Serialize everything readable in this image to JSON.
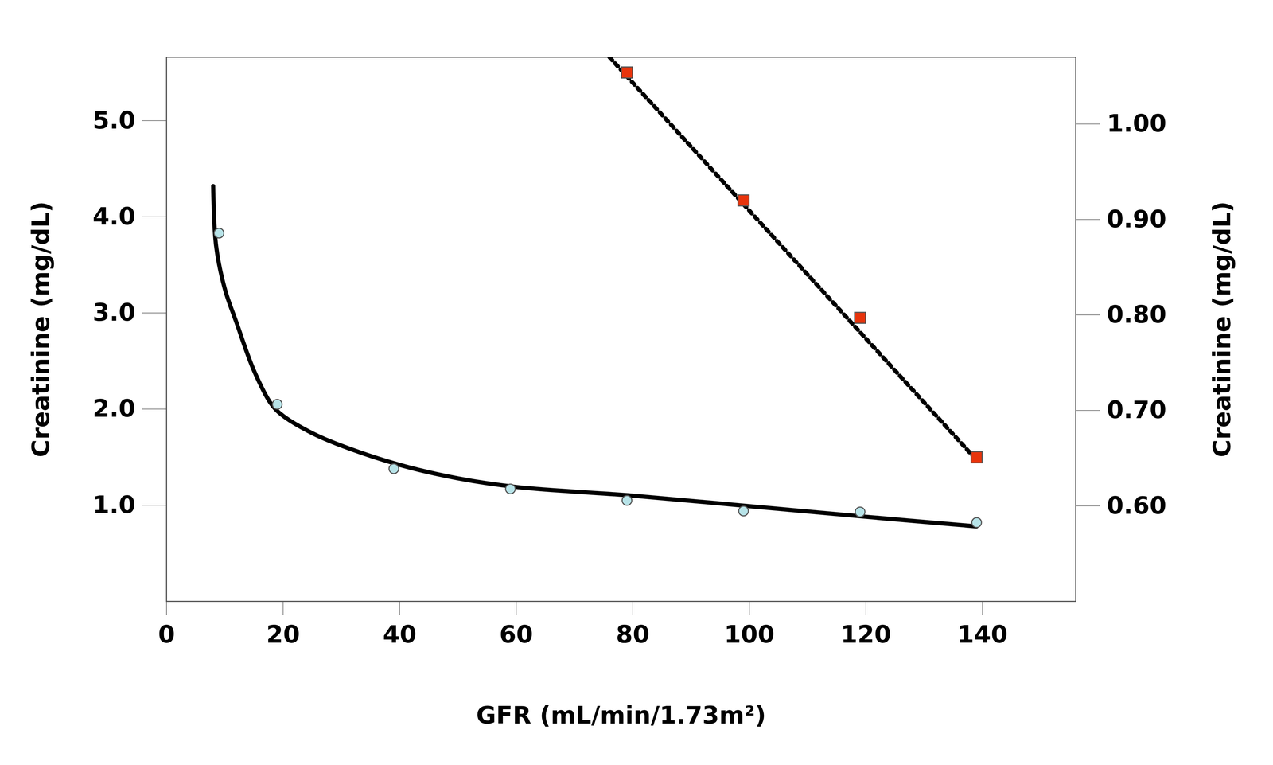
{
  "chart_data": {
    "type": "scatter",
    "xlabel": "GFR (mL/min/1.73m²)",
    "ylabel": "Creatinine (mg/dL)",
    "y2label": "Creatinine (mg/dL)",
    "xlim": [
      0,
      156
    ],
    "xticks": [
      0,
      20,
      40,
      60,
      80,
      100,
      120,
      140
    ],
    "ylim": [
      0,
      5.66
    ],
    "yticks": [
      {
        "value": 1,
        "label": "1.0"
      },
      {
        "value": 2,
        "label": "2.0"
      },
      {
        "value": 3,
        "label": "3.0"
      },
      {
        "value": 4,
        "label": "4.0"
      },
      {
        "value": 5,
        "label": "5.0"
      }
    ],
    "y2lim": [
      0.5,
      1.07
    ],
    "y2ticks": [
      {
        "value": 0.6,
        "label": "0.60"
      },
      {
        "value": 0.7,
        "label": "0.70"
      },
      {
        "value": 0.8,
        "label": "0.80"
      },
      {
        "value": 0.9,
        "label": "0.90"
      },
      {
        "value": 1,
        "label": "1.00"
      }
    ],
    "grid": false,
    "series": [
      {
        "type": "line",
        "line_style": "solid",
        "color": "#000000",
        "x": [
          8,
          8.5,
          10,
          12,
          15,
          18,
          20,
          25,
          30,
          40,
          50,
          60,
          80,
          100,
          120,
          139
        ],
        "values": [
          4.32,
          3.7,
          3.25,
          2.9,
          2.4,
          2.05,
          1.93,
          1.75,
          1.62,
          1.42,
          1.28,
          1.19,
          1.1,
          0.99,
          0.88,
          0.78
        ]
      },
      {
        "type": "scatter",
        "marker": "circle",
        "color": "#b7e3e8",
        "x": [
          9,
          19,
          39,
          59,
          79,
          99,
          119,
          139
        ],
        "values": [
          3.83,
          2.05,
          1.38,
          1.17,
          1.05,
          0.94,
          0.93,
          0.82
        ]
      },
      {
        "type": "line",
        "line_style": "dotted",
        "color": "#000000",
        "axis": "y2",
        "x": [
          76,
          139
        ],
        "values": [
          1.07,
          0.648
        ]
      },
      {
        "type": "scatter",
        "marker": "square",
        "color": "#e8340c",
        "axis": "y2",
        "x": [
          79,
          99,
          119,
          139
        ],
        "values": [
          1.054,
          0.92,
          0.797,
          0.651
        ]
      }
    ]
  }
}
